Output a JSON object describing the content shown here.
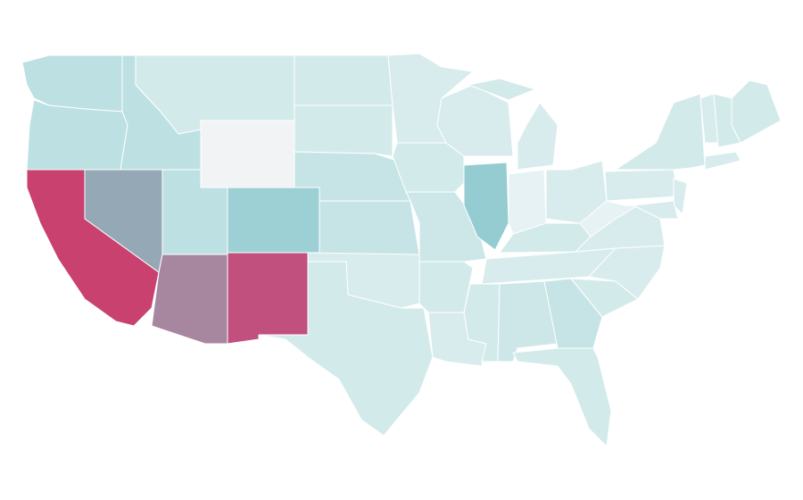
{
  "map": {
    "fills": [
      "#bde0e2",
      "#bde0e2",
      "#c9416f",
      "#95a8b5",
      "#bde0e2",
      "#d3eaeb",
      "#f2f3f4",
      "#bde0e2",
      "#a786a0",
      "#9dd0d4",
      "#c1507e",
      "#d3eaeb",
      "#d3eaeb",
      "#c6e4e6",
      "#c6e4e6",
      "#d8eced",
      "#d3eaeb",
      "#d8eced",
      "#d3eaeb",
      "#cde7e9",
      "#d3eaeb",
      "#d8eced",
      "#95ccd1",
      "#d8eced",
      "#d8eced",
      "#d3eaeb",
      "#e6f2f3",
      "#d8eced",
      "#d3eaeb",
      "#d8eced",
      "#d3eaeb",
      "#cde7e9",
      "#c6e4e6",
      "#d3eaeb",
      "#d3eaeb",
      "#d8eced",
      "#d8eced",
      "#e6f2f3",
      "#d8eced",
      "#d3eaeb",
      "#d3eaeb",
      "#d8eced",
      "#d3eaeb",
      "#d8eced",
      "#d8eced",
      "#d8eced"
    ],
    "border": "#ffffff",
    "background": "#ffffff"
  }
}
